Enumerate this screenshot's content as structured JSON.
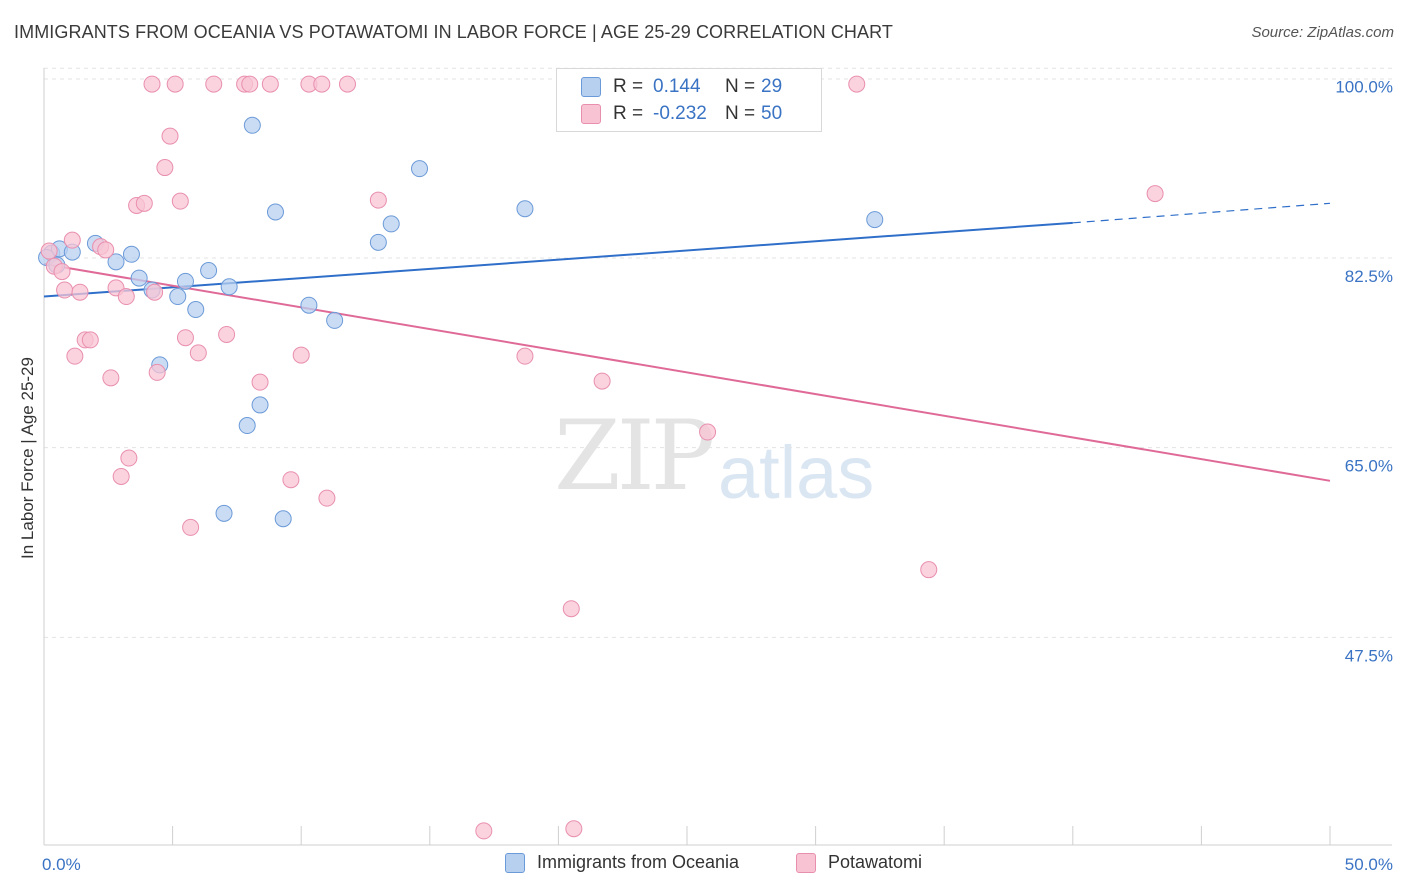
{
  "header": {
    "title": "IMMIGRANTS FROM OCEANIA VS POTAWATOMI IN LABOR FORCE | AGE 25-29 CORRELATION CHART",
    "source": "Source: ZipAtlas.com"
  },
  "watermark": {
    "zip": "ZIP",
    "atlas": "atlas"
  },
  "legend_top": {
    "rows": [
      {
        "r_label": "R =",
        "r_value": "0.144",
        "n_label": "N =",
        "n_value": "29"
      },
      {
        "r_label": "R =",
        "r_value": "-0.232",
        "n_label": "N =",
        "n_value": "50"
      }
    ]
  },
  "legend_bottom": {
    "items": [
      "Immigrants from Oceania",
      "Potawatomi"
    ]
  },
  "colors": {
    "blue_fill": "#b8d0f0",
    "blue_stroke": "#6b9ad8",
    "blue_line": "#2f6fc9",
    "pink_fill": "#f8c4d4",
    "pink_stroke": "#e98fae",
    "pink_line": "#e06a97",
    "axis_text": "#3a73c4",
    "grid": "#e3e3e3"
  },
  "chart_data": {
    "type": "scatter",
    "title": "IMMIGRANTS FROM OCEANIA VS POTAWATOMI IN LABOR FORCE | AGE 25-29 CORRELATION CHART",
    "xlabel": "",
    "ylabel": "In Labor Force | Age 25-29",
    "xlim": [
      0,
      50
    ],
    "ylim": [
      30,
      101.5
    ],
    "x_tick_labels": [
      {
        "value": 0,
        "label": "0.0%"
      },
      {
        "value": 50,
        "label": "50.0%"
      }
    ],
    "y_tick_labels": [
      {
        "value": 100,
        "label": "100.0%"
      },
      {
        "value": 82.5,
        "label": "82.5%"
      },
      {
        "value": 65,
        "label": "65.0%"
      },
      {
        "value": 47.5,
        "label": "47.5%"
      }
    ],
    "grid": true,
    "legend": "top-center",
    "series": [
      {
        "name": "Immigrants from Oceania",
        "color": "#b8d0f0",
        "points": [
          [
            0.3,
            84.6
          ],
          [
            0.6,
            85.0
          ],
          [
            1.1,
            84.7
          ],
          [
            2.0,
            85.5
          ],
          [
            2.8,
            83.8
          ],
          [
            3.4,
            84.5
          ],
          [
            3.7,
            82.3
          ],
          [
            4.2,
            81.2
          ],
          [
            4.5,
            74.3
          ],
          [
            5.2,
            80.6
          ],
          [
            5.5,
            82.0
          ],
          [
            5.9,
            79.4
          ],
          [
            6.4,
            83.0
          ],
          [
            7.0,
            60.6
          ],
          [
            7.2,
            81.5
          ],
          [
            7.9,
            68.7
          ],
          [
            8.1,
            96.4
          ],
          [
            8.4,
            70.6
          ],
          [
            9.0,
            88.4
          ],
          [
            9.3,
            60.1
          ],
          [
            10.3,
            79.8
          ],
          [
            11.3,
            78.4
          ],
          [
            13.0,
            85.6
          ],
          [
            13.5,
            87.3
          ],
          [
            14.6,
            92.4
          ],
          [
            18.7,
            88.7
          ],
          [
            32.3,
            87.7
          ],
          [
            0.1,
            84.2
          ],
          [
            0.5,
            83.5
          ]
        ]
      },
      {
        "name": "Potawatomi",
        "color": "#f8c4d4",
        "points": [
          [
            0.2,
            84.8
          ],
          [
            0.4,
            83.4
          ],
          [
            0.7,
            82.9
          ],
          [
            0.8,
            81.2
          ],
          [
            1.1,
            85.8
          ],
          [
            1.2,
            75.1
          ],
          [
            1.4,
            81.0
          ],
          [
            1.6,
            76.6
          ],
          [
            1.8,
            76.6
          ],
          [
            2.2,
            85.2
          ],
          [
            2.4,
            84.9
          ],
          [
            2.6,
            73.1
          ],
          [
            2.8,
            81.4
          ],
          [
            3.0,
            64.0
          ],
          [
            3.2,
            80.6
          ],
          [
            3.3,
            65.7
          ],
          [
            3.6,
            89.0
          ],
          [
            3.9,
            89.2
          ],
          [
            4.2,
            100.2
          ],
          [
            4.3,
            81.0
          ],
          [
            4.4,
            73.6
          ],
          [
            4.7,
            92.5
          ],
          [
            4.9,
            95.4
          ],
          [
            5.1,
            100.2
          ],
          [
            5.3,
            89.4
          ],
          [
            5.5,
            76.8
          ],
          [
            5.7,
            59.3
          ],
          [
            6.0,
            75.4
          ],
          [
            6.6,
            100.2
          ],
          [
            7.1,
            77.1
          ],
          [
            7.8,
            100.2
          ],
          [
            8.0,
            100.2
          ],
          [
            8.4,
            72.7
          ],
          [
            8.8,
            100.2
          ],
          [
            9.6,
            63.7
          ],
          [
            10.0,
            75.2
          ],
          [
            10.3,
            100.2
          ],
          [
            10.8,
            100.2
          ],
          [
            11.0,
            62.0
          ],
          [
            11.8,
            100.2
          ],
          [
            13.0,
            89.5
          ],
          [
            18.7,
            75.1
          ],
          [
            20.5,
            51.8
          ],
          [
            20.6,
            31.5
          ],
          [
            21.7,
            72.8
          ],
          [
            25.8,
            68.1
          ],
          [
            31.6,
            100.2
          ],
          [
            34.4,
            55.4
          ],
          [
            43.2,
            90.1
          ],
          [
            17.1,
            31.3
          ]
        ]
      }
    ],
    "trend_lines": [
      {
        "series": "Immigrants from Oceania",
        "x": [
          0,
          40
        ],
        "y": [
          80.6,
          87.4
        ],
        "dashed_extension": [
          40,
          50
        ],
        "dashed_y": [
          87.4,
          89.2
        ]
      },
      {
        "series": "Potawatomi",
        "x": [
          0,
          50
        ],
        "y": [
          83.6,
          63.6
        ]
      }
    ]
  }
}
